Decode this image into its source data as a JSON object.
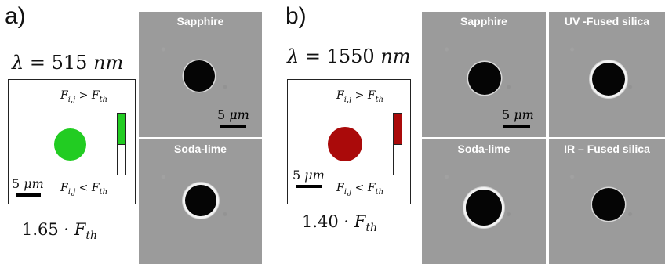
{
  "panel_a": {
    "letter": "a)",
    "wavelength_symbol": "λ",
    "wavelength_eq": "=",
    "wavelength_value": "515",
    "wavelength_unit": "nm",
    "sim_color": "#22cc22",
    "ineq_top": {
      "var": "F",
      "sub_var": "i,j",
      "op": ">",
      "rhs": "F",
      "rhs_sub": "th"
    },
    "ineq_bottom": {
      "var": "F",
      "sub_var": "i,j",
      "op": "<",
      "rhs": "F",
      "rhs_sub": "th"
    },
    "scale": {
      "value": "5",
      "unit": "μm"
    },
    "fluence": {
      "factor": "1.65 ·",
      "symbol": "F",
      "sub": "th"
    },
    "sem": [
      {
        "title": "Sapphire",
        "scale_value": "5",
        "scale_unit": "μm"
      },
      {
        "title": "Soda-lime"
      }
    ]
  },
  "panel_b": {
    "letter": "b)",
    "wavelength_symbol": "λ",
    "wavelength_eq": "=",
    "wavelength_value": "1550",
    "wavelength_unit": "nm",
    "sim_color": "#aa0a0a",
    "ineq_top": {
      "var": "F",
      "sub_var": "i,j",
      "op": ">",
      "rhs": "F",
      "rhs_sub": "th"
    },
    "ineq_bottom": {
      "var": "F",
      "sub_var": "i,j",
      "op": "<",
      "rhs": "F",
      "rhs_sub": "th"
    },
    "scale": {
      "value": "5",
      "unit": "μm"
    },
    "fluence": {
      "factor": "1.40 ·",
      "symbol": "F",
      "sub": "th"
    },
    "sem": [
      {
        "title": "Sapphire",
        "scale_value": "5",
        "scale_unit": "μm"
      },
      {
        "title": "UV -Fused silica"
      },
      {
        "title": "Soda-lime"
      },
      {
        "title": "IR – Fused silica"
      }
    ]
  }
}
